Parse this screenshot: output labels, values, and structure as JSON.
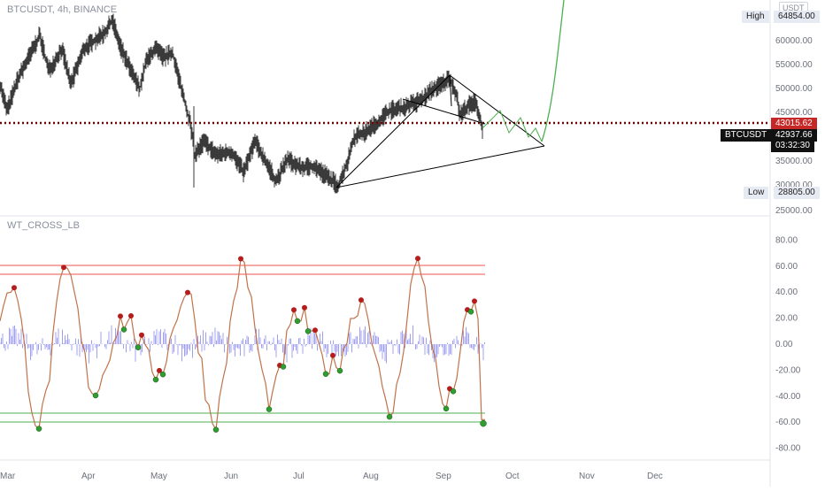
{
  "header": {
    "symbol_title": "BTCUSDT, 4h, BINANCE",
    "currency": "USDT"
  },
  "indicator": {
    "title": "WT_CROSS_LB"
  },
  "price_axis": {
    "ticks": [
      "60000.00",
      "55000.00",
      "50000.00",
      "45000.00",
      "35000.00",
      "30000.00",
      "25000.00"
    ],
    "high_label": "High",
    "high_value": "64854.00",
    "low_label": "Low",
    "low_value": "28805.00",
    "alert_price": "43015.62",
    "ticker_label": "BTCUSDT",
    "last_price": "42937.66",
    "countdown": "03:32:30"
  },
  "osc_axis": {
    "ticks": [
      "80.00",
      "60.00",
      "40.00",
      "20.00",
      "0.00",
      "-20.00",
      "-40.00",
      "-60.00",
      "-80.00"
    ]
  },
  "time_axis": {
    "ticks": [
      "Mar",
      "Apr",
      "May",
      "Jun",
      "Jul",
      "Aug",
      "Sep",
      "Oct",
      "Nov",
      "Dec"
    ]
  },
  "colors": {
    "up_candle": "#3a3a3a",
    "trendline": "#000000",
    "projection": "#4caf50",
    "alert_line": "#7a0000",
    "alert_badge": "#c62828",
    "wt1": "#c0734a",
    "wt2_histogram": "#8f8ff0",
    "cross_up": "#2e9e2e",
    "cross_down": "#b71c1c",
    "overbought": "#ef5350",
    "oversold": "#4caf50"
  }
}
